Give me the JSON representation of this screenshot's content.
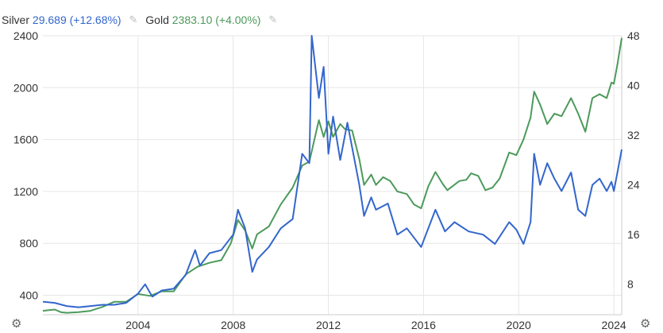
{
  "legend": {
    "silver": {
      "name": "Silver",
      "value": "29.689 (+12.68%)",
      "color": "#3366cc"
    },
    "gold": {
      "name": "Gold",
      "value": "2383.10 (+4.00%)",
      "color": "#4c9a5b"
    },
    "edit_icon": "pencil-icon"
  },
  "settings_icon": "gear-icon",
  "chart_data": {
    "type": "line",
    "x_axis": {
      "type": "date",
      "range": [
        2000.0,
        2024.33
      ],
      "ticks": [
        "2004",
        "2008",
        "2012",
        "2016",
        "2020",
        "2024"
      ],
      "tick_years": [
        2004,
        2008,
        2012,
        2016,
        2020,
        2024
      ]
    },
    "y_left": {
      "range": [
        250,
        2400
      ],
      "ticks": [
        "400",
        "800",
        "1200",
        "1600",
        "2000",
        "2400"
      ],
      "tick_values": [
        400,
        800,
        1200,
        1600,
        2000,
        2400
      ],
      "series": "Gold"
    },
    "y_right": {
      "range": [
        3.1,
        48
      ],
      "ticks": [
        "8",
        "16",
        "24",
        "32",
        "40",
        "48"
      ],
      "tick_values": [
        8,
        16,
        24,
        32,
        40,
        48
      ],
      "series": "Silver"
    },
    "grid": true,
    "series": [
      {
        "name": "Gold",
        "axis": "left",
        "color": "#4c9a5b",
        "points": [
          [
            2000.0,
            280
          ],
          [
            2000.25,
            285
          ],
          [
            2000.5,
            290
          ],
          [
            2000.75,
            270
          ],
          [
            2001.0,
            265
          ],
          [
            2001.5,
            270
          ],
          [
            2002.0,
            280
          ],
          [
            2002.5,
            310
          ],
          [
            2003.0,
            350
          ],
          [
            2003.5,
            350
          ],
          [
            2004.0,
            410
          ],
          [
            2004.5,
            395
          ],
          [
            2005.0,
            430
          ],
          [
            2005.5,
            430
          ],
          [
            2006.0,
            560
          ],
          [
            2006.5,
            620
          ],
          [
            2007.0,
            650
          ],
          [
            2007.5,
            670
          ],
          [
            2007.9,
            800
          ],
          [
            2008.2,
            980
          ],
          [
            2008.5,
            900
          ],
          [
            2008.8,
            760
          ],
          [
            2009.0,
            870
          ],
          [
            2009.5,
            930
          ],
          [
            2010.0,
            1100
          ],
          [
            2010.5,
            1230
          ],
          [
            2010.9,
            1400
          ],
          [
            2011.2,
            1430
          ],
          [
            2011.6,
            1750
          ],
          [
            2011.8,
            1620
          ],
          [
            2012.0,
            1740
          ],
          [
            2012.2,
            1620
          ],
          [
            2012.5,
            1720
          ],
          [
            2012.7,
            1680
          ],
          [
            2013.0,
            1670
          ],
          [
            2013.3,
            1450
          ],
          [
            2013.5,
            1250
          ],
          [
            2013.8,
            1330
          ],
          [
            2014.0,
            1250
          ],
          [
            2014.3,
            1310
          ],
          [
            2014.6,
            1280
          ],
          [
            2014.9,
            1200
          ],
          [
            2015.3,
            1180
          ],
          [
            2015.6,
            1100
          ],
          [
            2015.9,
            1070
          ],
          [
            2016.2,
            1240
          ],
          [
            2016.5,
            1350
          ],
          [
            2016.8,
            1260
          ],
          [
            2017.0,
            1210
          ],
          [
            2017.5,
            1280
          ],
          [
            2017.8,
            1290
          ],
          [
            2018.0,
            1340
          ],
          [
            2018.3,
            1320
          ],
          [
            2018.6,
            1210
          ],
          [
            2018.9,
            1230
          ],
          [
            2019.2,
            1300
          ],
          [
            2019.6,
            1500
          ],
          [
            2019.9,
            1480
          ],
          [
            2020.2,
            1600
          ],
          [
            2020.5,
            1770
          ],
          [
            2020.65,
            1970
          ],
          [
            2020.9,
            1870
          ],
          [
            2021.2,
            1720
          ],
          [
            2021.5,
            1800
          ],
          [
            2021.8,
            1780
          ],
          [
            2022.2,
            1920
          ],
          [
            2022.5,
            1800
          ],
          [
            2022.8,
            1660
          ],
          [
            2023.1,
            1920
          ],
          [
            2023.4,
            1950
          ],
          [
            2023.7,
            1920
          ],
          [
            2023.9,
            2040
          ],
          [
            2024.0,
            2030
          ],
          [
            2024.15,
            2180
          ],
          [
            2024.33,
            2383
          ]
        ]
      },
      {
        "name": "Silver",
        "axis": "right",
        "color": "#3366cc",
        "points": [
          [
            2000.0,
            5.2
          ],
          [
            2000.5,
            5.0
          ],
          [
            2001.0,
            4.5
          ],
          [
            2001.5,
            4.3
          ],
          [
            2002.0,
            4.5
          ],
          [
            2002.5,
            4.7
          ],
          [
            2003.0,
            4.7
          ],
          [
            2003.5,
            5.0
          ],
          [
            2004.0,
            6.5
          ],
          [
            2004.3,
            8.0
          ],
          [
            2004.6,
            6.0
          ],
          [
            2005.0,
            7.0
          ],
          [
            2005.5,
            7.3
          ],
          [
            2006.0,
            9.5
          ],
          [
            2006.4,
            13.5
          ],
          [
            2006.6,
            11.0
          ],
          [
            2007.0,
            13.0
          ],
          [
            2007.5,
            13.5
          ],
          [
            2008.0,
            16.0
          ],
          [
            2008.2,
            20.0
          ],
          [
            2008.5,
            17.0
          ],
          [
            2008.8,
            10.0
          ],
          [
            2009.0,
            12.0
          ],
          [
            2009.5,
            14.0
          ],
          [
            2010.0,
            17.0
          ],
          [
            2010.5,
            18.5
          ],
          [
            2010.9,
            29.0
          ],
          [
            2011.2,
            27.5
          ],
          [
            2011.3,
            48.0
          ],
          [
            2011.6,
            38.0
          ],
          [
            2011.8,
            43.0
          ],
          [
            2012.0,
            29.0
          ],
          [
            2012.2,
            35.0
          ],
          [
            2012.5,
            28.0
          ],
          [
            2012.8,
            34.0
          ],
          [
            2013.0,
            30.0
          ],
          [
            2013.3,
            24.0
          ],
          [
            2013.5,
            19.0
          ],
          [
            2013.8,
            22.0
          ],
          [
            2014.0,
            20.0
          ],
          [
            2014.5,
            21.0
          ],
          [
            2014.9,
            16.0
          ],
          [
            2015.3,
            17.0
          ],
          [
            2015.9,
            14.0
          ],
          [
            2016.5,
            20.0
          ],
          [
            2016.9,
            16.5
          ],
          [
            2017.3,
            18.0
          ],
          [
            2017.9,
            16.5
          ],
          [
            2018.5,
            16.0
          ],
          [
            2019.0,
            14.5
          ],
          [
            2019.6,
            18.0
          ],
          [
            2019.9,
            16.8
          ],
          [
            2020.2,
            14.5
          ],
          [
            2020.5,
            18.0
          ],
          [
            2020.65,
            29.0
          ],
          [
            2020.9,
            24.0
          ],
          [
            2021.2,
            27.5
          ],
          [
            2021.5,
            25.0
          ],
          [
            2021.8,
            23.0
          ],
          [
            2022.2,
            26.0
          ],
          [
            2022.5,
            20.0
          ],
          [
            2022.8,
            19.0
          ],
          [
            2023.1,
            24.0
          ],
          [
            2023.4,
            25.0
          ],
          [
            2023.7,
            23.0
          ],
          [
            2023.9,
            24.5
          ],
          [
            2024.0,
            23.0
          ],
          [
            2024.15,
            26.0
          ],
          [
            2024.33,
            29.689
          ]
        ]
      }
    ]
  }
}
